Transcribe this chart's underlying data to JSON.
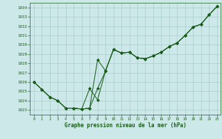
{
  "title": "Graphe pression niveau de la mer (hPa)",
  "bg_color": "#cce8e8",
  "grid_color": "#aacccc",
  "line_color": "#1a5c1a",
  "xlim": [
    -0.5,
    23.5
  ],
  "ylim": [
    1022.5,
    1034.5
  ],
  "yticks": [
    1023,
    1024,
    1025,
    1026,
    1027,
    1028,
    1029,
    1030,
    1031,
    1032,
    1033,
    1034
  ],
  "xticks": [
    0,
    1,
    2,
    3,
    4,
    5,
    6,
    7,
    8,
    9,
    10,
    11,
    12,
    13,
    14,
    15,
    16,
    17,
    18,
    19,
    20,
    21,
    22,
    23
  ],
  "line1_y": [
    1026.0,
    1025.2,
    1024.4,
    1024.0,
    1023.2,
    1023.2,
    1023.1,
    1023.2,
    1028.4,
    1027.2,
    1029.5,
    1029.1,
    1029.2,
    1028.6,
    1028.5,
    1028.8,
    1029.2,
    1029.8,
    1030.2,
    1031.0,
    1031.9,
    1032.2,
    1033.2,
    1034.1
  ],
  "line2_y": [
    1026.0,
    1025.2,
    1024.4,
    1024.0,
    1023.2,
    1023.2,
    1023.1,
    1025.3,
    1024.1,
    1027.2,
    1029.5,
    1029.1,
    1029.2,
    1028.6,
    1028.5,
    1028.8,
    1029.2,
    1029.8,
    1030.2,
    1031.0,
    1031.9,
    1032.2,
    1033.2,
    1034.1
  ],
  "line3_y": [
    1026.0,
    1025.2,
    1024.4,
    1024.0,
    1023.2,
    1023.2,
    1023.1,
    1023.2,
    1025.3,
    1027.2,
    1029.5,
    1029.1,
    1029.2,
    1028.6,
    1028.5,
    1028.8,
    1029.2,
    1029.8,
    1030.2,
    1031.0,
    1031.9,
    1032.2,
    1033.2,
    1034.1
  ]
}
